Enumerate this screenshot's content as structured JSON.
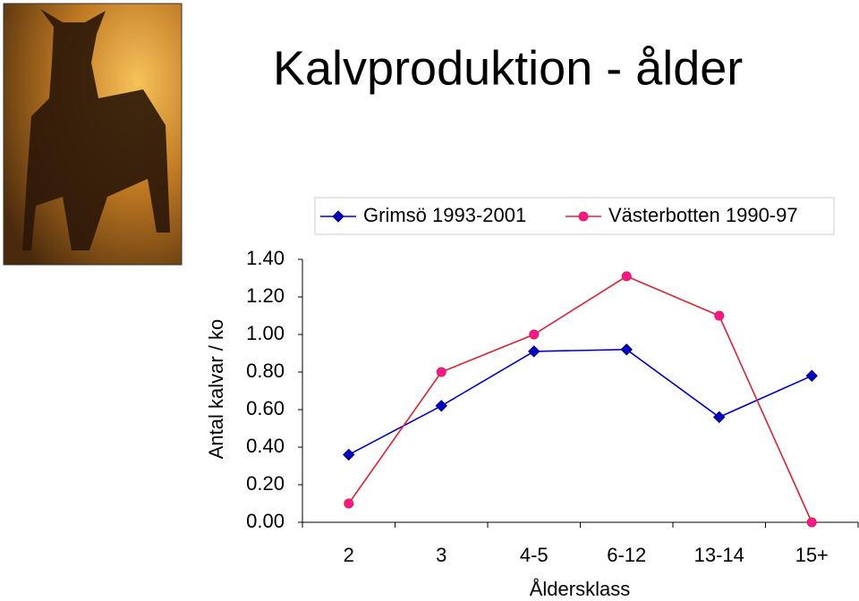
{
  "chart_data": {
    "type": "line",
    "title": "Kalvproduktion - ålder",
    "y_label": "Antal kalvar / ko",
    "x_label": "Åldersklass",
    "categories": [
      "2",
      "3",
      "4-5",
      "6-12",
      "13-14",
      "15+"
    ],
    "series": [
      {
        "name": "Grimsö 1993-2001",
        "color": "#0000cc",
        "marker": "diamond",
        "values": [
          0.36,
          0.62,
          0.91,
          0.92,
          0.56,
          0.78
        ]
      },
      {
        "name": "Västerbotten 1990-97",
        "color": "#dd2233",
        "marker": "circle",
        "values": [
          0.1,
          0.8,
          1.0,
          1.31,
          1.1,
          0.0
        ]
      }
    ],
    "ylim": [
      0,
      1.4
    ],
    "yticks": [
      {
        "value": 0,
        "label": "0.00"
      },
      {
        "value": 0.2,
        "label": "0.20"
      },
      {
        "value": 0.4,
        "label": "0.40"
      },
      {
        "value": 0.6,
        "label": "0.60"
      },
      {
        "value": 0.8,
        "label": "0.80"
      },
      {
        "value": 1,
        "label": "1.00"
      },
      {
        "value": 1.2,
        "label": "1.20"
      },
      {
        "value": 1.4,
        "label": "1.40"
      }
    ],
    "grid": false,
    "legend": "top"
  }
}
